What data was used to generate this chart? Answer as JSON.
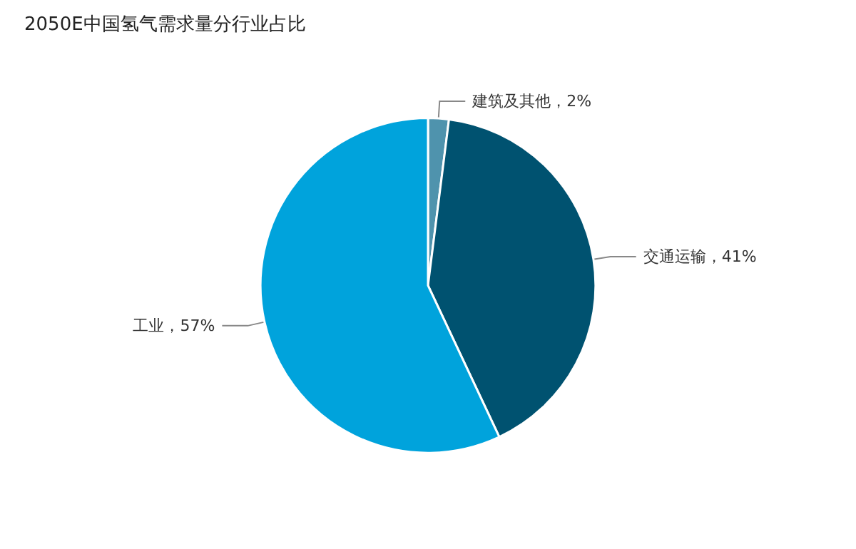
{
  "chart_data": {
    "type": "pie",
    "title": "2050E中国氢气需求量分行业占比",
    "categories": [
      "建筑及其他",
      "交通运输",
      "工业"
    ],
    "values": [
      2,
      41,
      57
    ],
    "value_labels": [
      "2%",
      "41%",
      "57%"
    ],
    "colors": [
      "#4f93ad",
      "#005270",
      "#00a3dc"
    ],
    "legend": false
  }
}
